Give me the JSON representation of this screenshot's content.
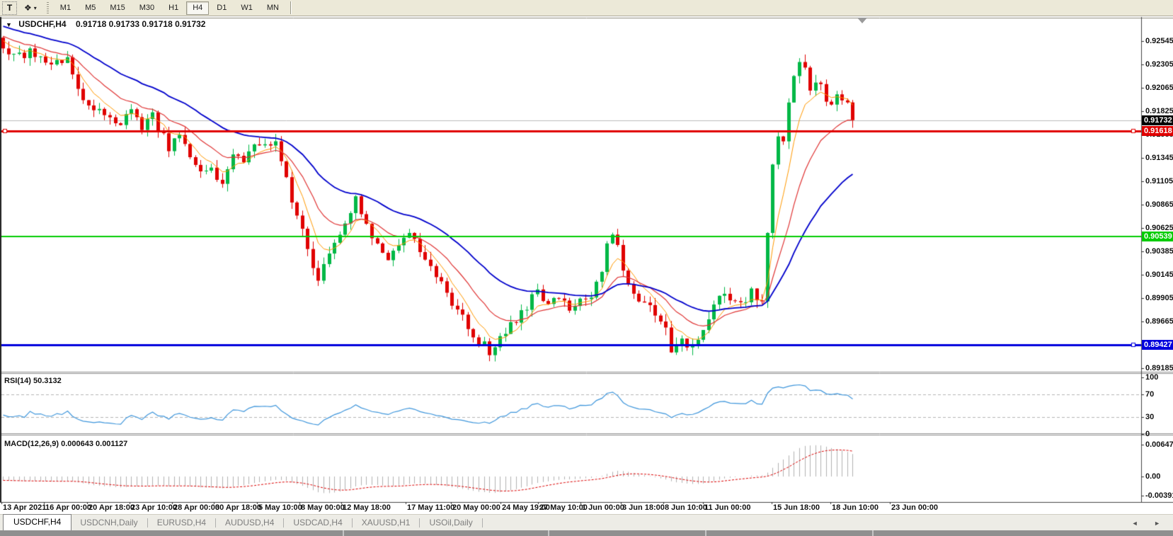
{
  "toolbar": {
    "t_label": "T",
    "tools_icon": "❖",
    "dropdown_arrow": "▾",
    "timeframes": [
      {
        "label": "M1",
        "active": false
      },
      {
        "label": "M5",
        "active": false
      },
      {
        "label": "M15",
        "active": false
      },
      {
        "label": "M30",
        "active": false
      },
      {
        "label": "H1",
        "active": false
      },
      {
        "label": "H4",
        "active": true
      },
      {
        "label": "D1",
        "active": false
      },
      {
        "label": "W1",
        "active": false
      },
      {
        "label": "MN",
        "active": false
      }
    ]
  },
  "chart": {
    "title_marker": "▼",
    "title_symbol": "USDCHF,H4",
    "title_ohlc": "0.91718 0.91733 0.91718 0.91732",
    "price_axis": {
      "labels": [
        "0.92545",
        "0.92305",
        "0.92065",
        "0.91825",
        "0.91585",
        "0.91345",
        "0.91105",
        "0.90865",
        "0.90625",
        "0.90385",
        "0.90145",
        "0.89905",
        "0.89665",
        "0.89425",
        "0.89185"
      ]
    },
    "tags": {
      "current": "0.91732",
      "red": "0.91618",
      "green": "0.90539",
      "blue": "0.89427"
    },
    "lines": {
      "current": 0.91732,
      "red": 0.91618,
      "green": 0.90539,
      "blue": 0.89427
    },
    "date_axis": {
      "labels": [
        "13 Apr 2021",
        "16 Apr 00:00",
        "20 Apr 18:00",
        "23 Apr 10:00",
        "28 Apr 00:00",
        "30 Apr 18:00",
        "5 May 10:00",
        "8 May 00:00",
        "12 May 18:00",
        "17 May 11:00",
        "20 May 00:00",
        "24 May 19:00",
        "27 May 10:00",
        "1 Jun 00:00",
        "3 Jun 18:00",
        "8 Jun 10:00",
        "11 Jun 00:00",
        "15 Jun 18:00",
        "18 Jun 10:00",
        "23 Jun 00:00"
      ]
    }
  },
  "rsi": {
    "label": "RSI(14) 50.3132",
    "period": 14,
    "current_value": 50.3132,
    "levels": [
      "100",
      "70",
      "30",
      "0"
    ],
    "level_values": [
      100,
      70,
      30,
      0
    ]
  },
  "macd": {
    "label": "MACD(12,26,9) 0.000643 0.001127",
    "params": [
      12,
      26,
      9
    ],
    "macd_value": 0.000643,
    "signal_value": 0.001127,
    "levels": [
      "0.00647",
      "0.00",
      "-0.003916"
    ],
    "level_values": [
      0.00647,
      0,
      -0.003916
    ]
  },
  "tabs": {
    "items": [
      {
        "label": "USDCHF,H4",
        "active": true
      },
      {
        "label": "USDCNH,Daily",
        "active": false
      },
      {
        "label": "EURUSD,H4",
        "active": false
      },
      {
        "label": "AUDUSD,H4",
        "active": false
      },
      {
        "label": "USDCAD,H4",
        "active": false
      },
      {
        "label": "XAUUSD,H1",
        "active": false
      },
      {
        "label": "USOil,Daily",
        "active": false
      }
    ],
    "scroll_left": "◄",
    "scroll_right": "►"
  },
  "colors": {
    "bull": "#00b846",
    "bear": "#e00000",
    "ma_fast": "#ff9900",
    "ma_mid": "#e03333",
    "ma_slow": "#0000cc",
    "rsi_line": "#3e96dc",
    "macd_bar": "#b2b2b2",
    "macd_signal": "#dd0000",
    "line_red": "#e00000",
    "line_green": "#00cc00",
    "line_blue": "#0000dd",
    "current_line": "#bcbcbc",
    "dashed_level": "#b4b4b4"
  },
  "chart_data": {
    "type": "candlestick",
    "symbol": "USDCHF",
    "timeframe": "H4",
    "visible_candles": 160,
    "last_close": 0.91732,
    "seed": 9,
    "noise": {
      "close": 0.0011,
      "wick": 0.0008
    },
    "emas": {
      "fast": 6,
      "mid": 14,
      "slow": 32
    },
    "rsi_period": 14,
    "macd_params": [
      12,
      26,
      9
    ],
    "preroll_anchors": [
      [
        -70,
        0.933
      ],
      [
        -50,
        0.9312
      ],
      [
        -30,
        0.9286
      ],
      [
        -15,
        0.927
      ],
      [
        -5,
        0.9258
      ]
    ],
    "price_anchors": [
      [
        0,
        0.9252
      ],
      [
        2,
        0.9238
      ],
      [
        5,
        0.9244
      ],
      [
        9,
        0.9228
      ],
      [
        12,
        0.9236
      ],
      [
        14,
        0.92
      ],
      [
        17,
        0.9186
      ],
      [
        20,
        0.9178
      ],
      [
        22,
        0.917
      ],
      [
        24,
        0.9184
      ],
      [
        26,
        0.9166
      ],
      [
        28,
        0.9176
      ],
      [
        31,
        0.9146
      ],
      [
        33,
        0.9162
      ],
      [
        35,
        0.9136
      ],
      [
        37,
        0.9116
      ],
      [
        39,
        0.9126
      ],
      [
        41,
        0.9108
      ],
      [
        43,
        0.914
      ],
      [
        45,
        0.913
      ],
      [
        47,
        0.915
      ],
      [
        49,
        0.9143
      ],
      [
        51,
        0.9152
      ],
      [
        52,
        0.9136
      ],
      [
        54,
        0.9092
      ],
      [
        55,
        0.9076
      ],
      [
        57,
        0.9042
      ],
      [
        59,
        0.9008
      ],
      [
        61,
        0.9032
      ],
      [
        63,
        0.9058
      ],
      [
        65,
        0.908
      ],
      [
        66,
        0.909
      ],
      [
        68,
        0.9062
      ],
      [
        70,
        0.9042
      ],
      [
        72,
        0.9026
      ],
      [
        74,
        0.9048
      ],
      [
        76,
        0.906
      ],
      [
        79,
        0.9032
      ],
      [
        81,
        0.9012
      ],
      [
        83,
        0.8996
      ],
      [
        85,
        0.8976
      ],
      [
        87,
        0.8962
      ],
      [
        89,
        0.8946
      ],
      [
        91,
        0.8936
      ],
      [
        93,
        0.8952
      ],
      [
        95,
        0.8966
      ],
      [
        98,
        0.8976
      ],
      [
        100,
        0.9002
      ],
      [
        101,
        0.8988
      ],
      [
        102,
        0.8984
      ],
      [
        104,
        0.8992
      ],
      [
        106,
        0.898
      ],
      [
        108,
        0.8986
      ],
      [
        110,
        0.8996
      ],
      [
        112,
        0.9012
      ],
      [
        113,
        0.9042
      ],
      [
        114,
        0.9056
      ],
      [
        115,
        0.904
      ],
      [
        116,
        0.9022
      ],
      [
        118,
        0.8996
      ],
      [
        120,
        0.8986
      ],
      [
        122,
        0.8972
      ],
      [
        124,
        0.8956
      ],
      [
        125,
        0.8938
      ],
      [
        127,
        0.8952
      ],
      [
        129,
        0.8936
      ],
      [
        131,
        0.8962
      ],
      [
        133,
        0.8986
      ],
      [
        135,
        0.8996
      ],
      [
        137,
        0.899
      ],
      [
        139,
        0.8986
      ],
      [
        140,
        0.8996
      ],
      [
        142,
        0.899
      ],
      [
        143,
        0.906
      ],
      [
        144,
        0.913
      ],
      [
        145,
        0.9162
      ],
      [
        146,
        0.9152
      ],
      [
        147,
        0.9192
      ],
      [
        148,
        0.9216
      ],
      [
        149,
        0.923
      ],
      [
        150,
        0.9222
      ],
      [
        151,
        0.9206
      ],
      [
        152,
        0.9216
      ],
      [
        154,
        0.9196
      ],
      [
        155,
        0.9186
      ],
      [
        156,
        0.9204
      ],
      [
        158,
        0.9192
      ],
      [
        159,
        0.91732
      ]
    ]
  }
}
